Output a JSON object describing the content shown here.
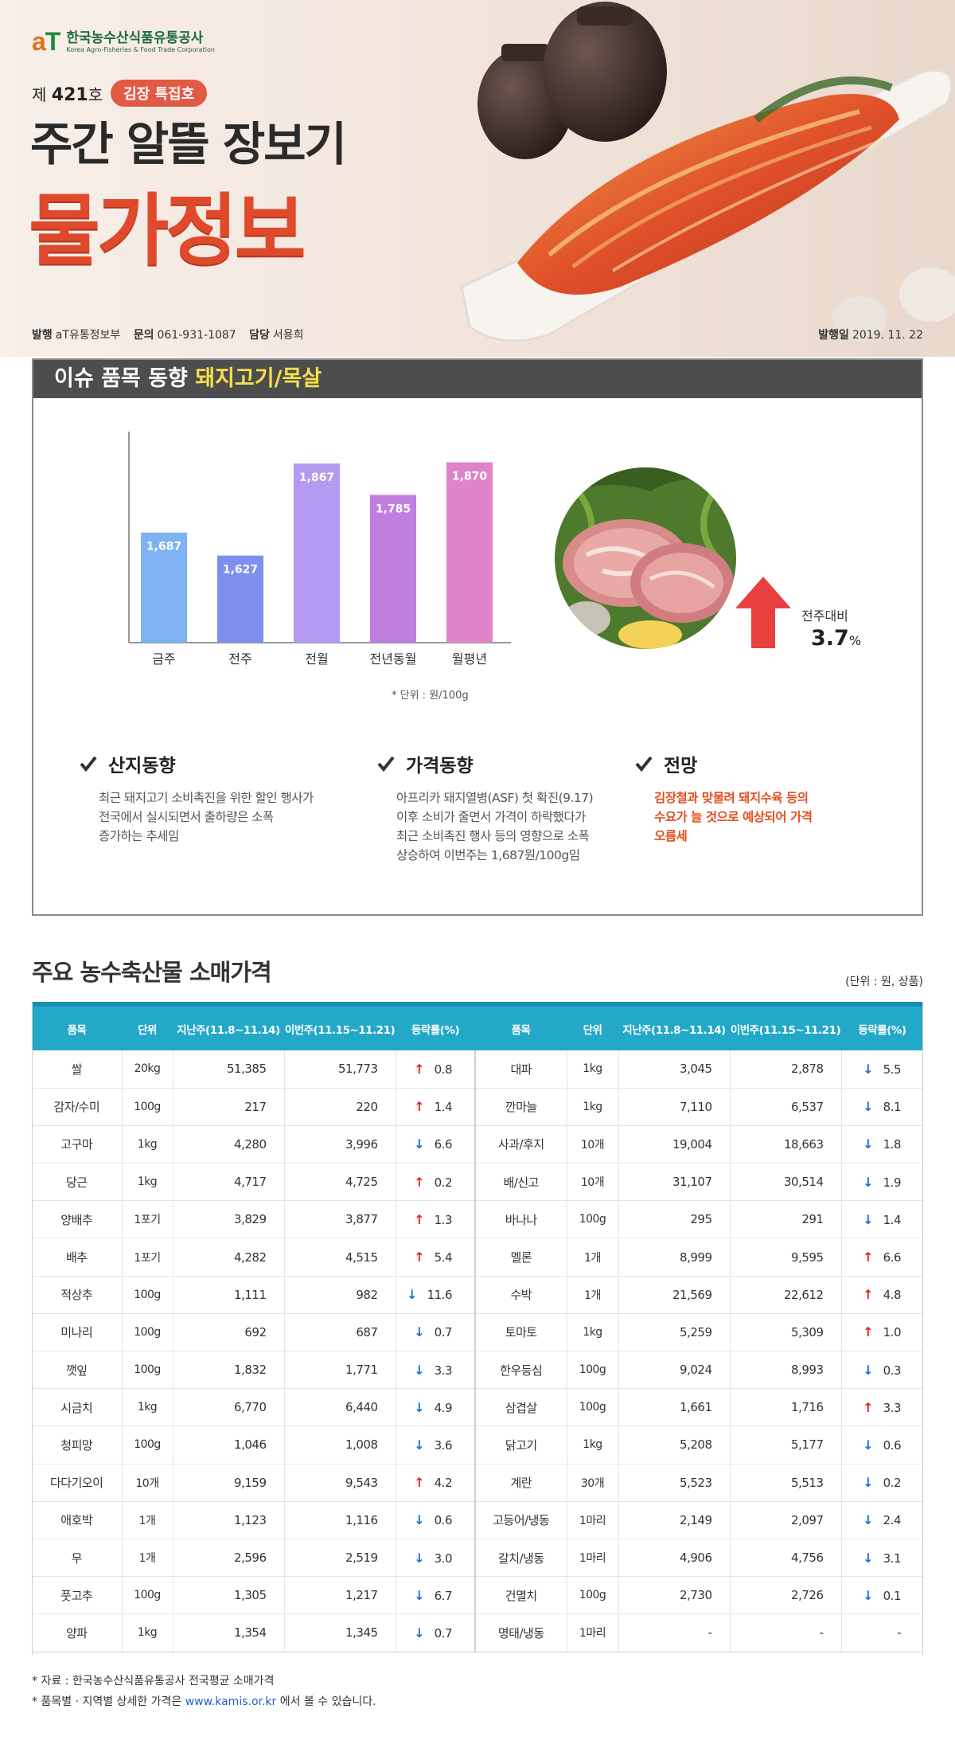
{
  "header": {
    "logo_mark_a": "a",
    "logo_mark_t": "T",
    "org_name_ko": "한국농수산식품유통공사",
    "org_name_en": "Korea Agro-Fisheries & Food Trade Corporation",
    "issue_prefix": "제",
    "issue_number": "421",
    "issue_suffix": "호",
    "issue_tag": "김장 특집호",
    "title": "주간 알뜰 장보기",
    "title_big": "물가정보",
    "publisher_label": "발행",
    "publisher": "aT유통정보부",
    "contact_label": "문의",
    "contact": "061-931-1087",
    "manager_label": "담당",
    "manager": "서용희",
    "date_label": "발행일",
    "date": "2019. 11. 22"
  },
  "issue": {
    "heading_prefix": "이슈 품목 동향",
    "heading_item": "돼지고기/목살",
    "unit_note": "* 단위 : 원/100g",
    "wow_label": "전주대비",
    "wow_value": "3.7",
    "wow_unit": "%",
    "trends": [
      {
        "title": "산지동향",
        "lines": [
          "최근 돼지고기 소비촉진을 위한 할인 행사가",
          "전국에서 실시되면서 출하량은 소폭",
          "증가하는 추세임"
        ]
      },
      {
        "title": "가격동향",
        "lines": [
          "아프리카 돼지열병(ASF) 첫 확진(9.17)",
          "이후 소비가 줄면서 가격이 하락했다가",
          "최근 소비촉진 행사 등의 영향으로 소폭",
          "상승하여 이번주는 1,687원/100g임"
        ]
      },
      {
        "title": "전망",
        "lines": [
          "김장철과 맞물려 돼지수육 등의",
          "수요가 늘 것으로 예상되어 가격",
          "오름세"
        ]
      }
    ],
    "colors": {
      "up_arrow": "#e8403e",
      "bars": [
        "#7fb2f2",
        "#7f8ff0",
        "#b49af0",
        "#c07ee0",
        "#df84c8"
      ]
    }
  },
  "chart_data": {
    "type": "bar",
    "categories": [
      "금주",
      "전주",
      "전월",
      "전년동월",
      "월평년"
    ],
    "values": [
      1687,
      1627,
      1867,
      1785,
      1870
    ],
    "value_labels": [
      "1,687",
      "1,627",
      "1,867",
      "1,785",
      "1,870"
    ],
    "title": "",
    "xlabel": "",
    "ylabel": "",
    "ylim": [
      1400,
      1950
    ]
  },
  "prices": {
    "title": "주요 농수축산물 소매가격",
    "unit_note": "(단위 : 원, 상품)",
    "headers": [
      "품목",
      "단위",
      "지난주(11.8~11.14)",
      "이번주(11.15~11.21)",
      "등락률(%)",
      "품목",
      "단위",
      "지난주(11.8~11.14)",
      "이번주(11.15~11.21)",
      "등락률(%)"
    ],
    "rows": [
      {
        "l": [
          "쌀",
          "20kg",
          "51,385",
          "51,773",
          "up",
          "0.8"
        ],
        "r": [
          "대파",
          "1kg",
          "3,045",
          "2,878",
          "down",
          "5.5"
        ]
      },
      {
        "l": [
          "감자/수미",
          "100g",
          "217",
          "220",
          "up",
          "1.4"
        ],
        "r": [
          "깐마늘",
          "1kg",
          "7,110",
          "6,537",
          "down",
          "8.1"
        ]
      },
      {
        "l": [
          "고구마",
          "1kg",
          "4,280",
          "3,996",
          "down",
          "6.6"
        ],
        "r": [
          "사과/후지",
          "10개",
          "19,004",
          "18,663",
          "down",
          "1.8"
        ]
      },
      {
        "l": [
          "당근",
          "1kg",
          "4,717",
          "4,725",
          "up",
          "0.2"
        ],
        "r": [
          "배/신고",
          "10개",
          "31,107",
          "30,514",
          "down",
          "1.9"
        ]
      },
      {
        "l": [
          "양배추",
          "1포기",
          "3,829",
          "3,877",
          "up",
          "1.3"
        ],
        "r": [
          "바나나",
          "100g",
          "295",
          "291",
          "down",
          "1.4"
        ]
      },
      {
        "l": [
          "배추",
          "1포기",
          "4,282",
          "4,515",
          "up",
          "5.4"
        ],
        "r": [
          "멜론",
          "1개",
          "8,999",
          "9,595",
          "up",
          "6.6"
        ]
      },
      {
        "l": [
          "적상추",
          "100g",
          "1,111",
          "982",
          "down",
          "11.6"
        ],
        "r": [
          "수박",
          "1개",
          "21,569",
          "22,612",
          "up",
          "4.8"
        ]
      },
      {
        "l": [
          "미나리",
          "100g",
          "692",
          "687",
          "down",
          "0.7"
        ],
        "r": [
          "토마토",
          "1kg",
          "5,259",
          "5,309",
          "up",
          "1.0"
        ]
      },
      {
        "l": [
          "깻잎",
          "100g",
          "1,832",
          "1,771",
          "down",
          "3.3"
        ],
        "r": [
          "한우등심",
          "100g",
          "9,024",
          "8,993",
          "down",
          "0.3"
        ]
      },
      {
        "l": [
          "시금치",
          "1kg",
          "6,770",
          "6,440",
          "down",
          "4.9"
        ],
        "r": [
          "삼겹살",
          "100g",
          "1,661",
          "1,716",
          "up",
          "3.3"
        ]
      },
      {
        "l": [
          "청피망",
          "100g",
          "1,046",
          "1,008",
          "down",
          "3.6"
        ],
        "r": [
          "닭고기",
          "1kg",
          "5,208",
          "5,177",
          "down",
          "0.6"
        ]
      },
      {
        "l": [
          "다다기오이",
          "10개",
          "9,159",
          "9,543",
          "up",
          "4.2"
        ],
        "r": [
          "계란",
          "30개",
          "5,523",
          "5,513",
          "down",
          "0.2"
        ]
      },
      {
        "l": [
          "애호박",
          "1개",
          "1,123",
          "1,116",
          "down",
          "0.6"
        ],
        "r": [
          "고등어/냉동",
          "1마리",
          "2,149",
          "2,097",
          "down",
          "2.4"
        ]
      },
      {
        "l": [
          "무",
          "1개",
          "2,596",
          "2,519",
          "down",
          "3.0"
        ],
        "r": [
          "갈치/냉동",
          "1마리",
          "4,906",
          "4,756",
          "down",
          "3.1"
        ]
      },
      {
        "l": [
          "풋고추",
          "100g",
          "1,305",
          "1,217",
          "down",
          "6.7"
        ],
        "r": [
          "건멸치",
          "100g",
          "2,730",
          "2,726",
          "down",
          "0.1"
        ]
      },
      {
        "l": [
          "양파",
          "1kg",
          "1,354",
          "1,345",
          "down",
          "0.7"
        ],
        "r": [
          "명태/냉동",
          "1마리",
          "-",
          "-",
          "none",
          "-"
        ]
      }
    ]
  },
  "footer": {
    "source": "* 자료 : 한국농수산식품유통공사 전국평균 소매가격",
    "detail_prefix": "* 품목별 · 지역별 상세한 가격은",
    "detail_link": "www.kamis.or.kr",
    "detail_suffix": "에서 볼 수 있습니다."
  }
}
